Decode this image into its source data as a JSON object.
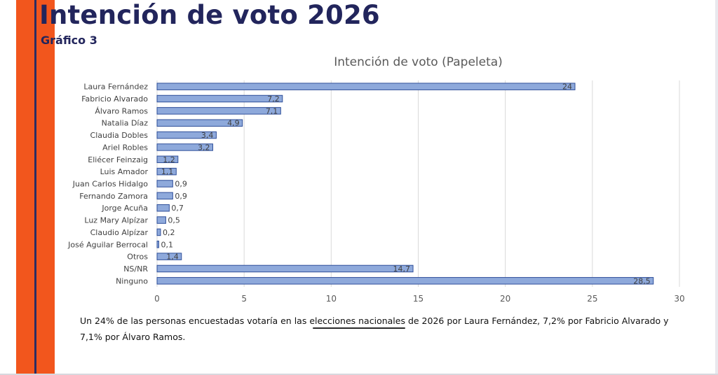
{
  "header": {
    "title": "Intención de voto 2026",
    "subtitle": "Gráfico 3"
  },
  "caption": "Un 24% de las personas encuestadas votaría en las elecciones nacionales de 2026 por Laura Fernández, 7,2% por Fabricio Alvarado y 7,1% por Álvaro Ramos.",
  "colors": {
    "accent_orange": "#f2561d",
    "brand_navy": "#22255c",
    "bar_fill": "#8ea9db",
    "bar_stroke": "#2f4f9a"
  },
  "chart_data": {
    "type": "bar",
    "orientation": "horizontal",
    "title": "Intención de voto (Papeleta)",
    "xlabel": "",
    "ylabel": "",
    "xlim": [
      0,
      30
    ],
    "xticks": [
      0,
      5,
      10,
      15,
      20,
      25,
      30
    ],
    "grid": true,
    "legend": "none",
    "categories": [
      "Laura Fernández",
      "Fabricio Alvarado",
      "Álvaro Ramos",
      "Natalia Díaz",
      "Claudia Dobles",
      "Ariel Robles",
      "Eliécer Feinzaig",
      "Luis Amador",
      "Juan Carlos Hidalgo",
      "Fernando Zamora",
      "Jorge Acuña",
      "Luz Mary Alpízar",
      "Claudio Alpízar",
      "José Aguilar Berrocal",
      "Otros",
      "NS/NR",
      "Ninguno"
    ],
    "values": [
      24,
      7.2,
      7.1,
      4.9,
      3.4,
      3.2,
      1.2,
      1.1,
      0.9,
      0.9,
      0.7,
      0.5,
      0.2,
      0.1,
      1.4,
      14.7,
      28.5
    ],
    "value_labels": [
      "24",
      "7,2",
      "7,1",
      "4,9",
      "3,4",
      "3,2",
      "1,2",
      "1,1",
      "0,9",
      "0,9",
      "0,7",
      "0,5",
      "0,2",
      "0,1",
      "1,4",
      "14,7",
      "28,5"
    ]
  }
}
